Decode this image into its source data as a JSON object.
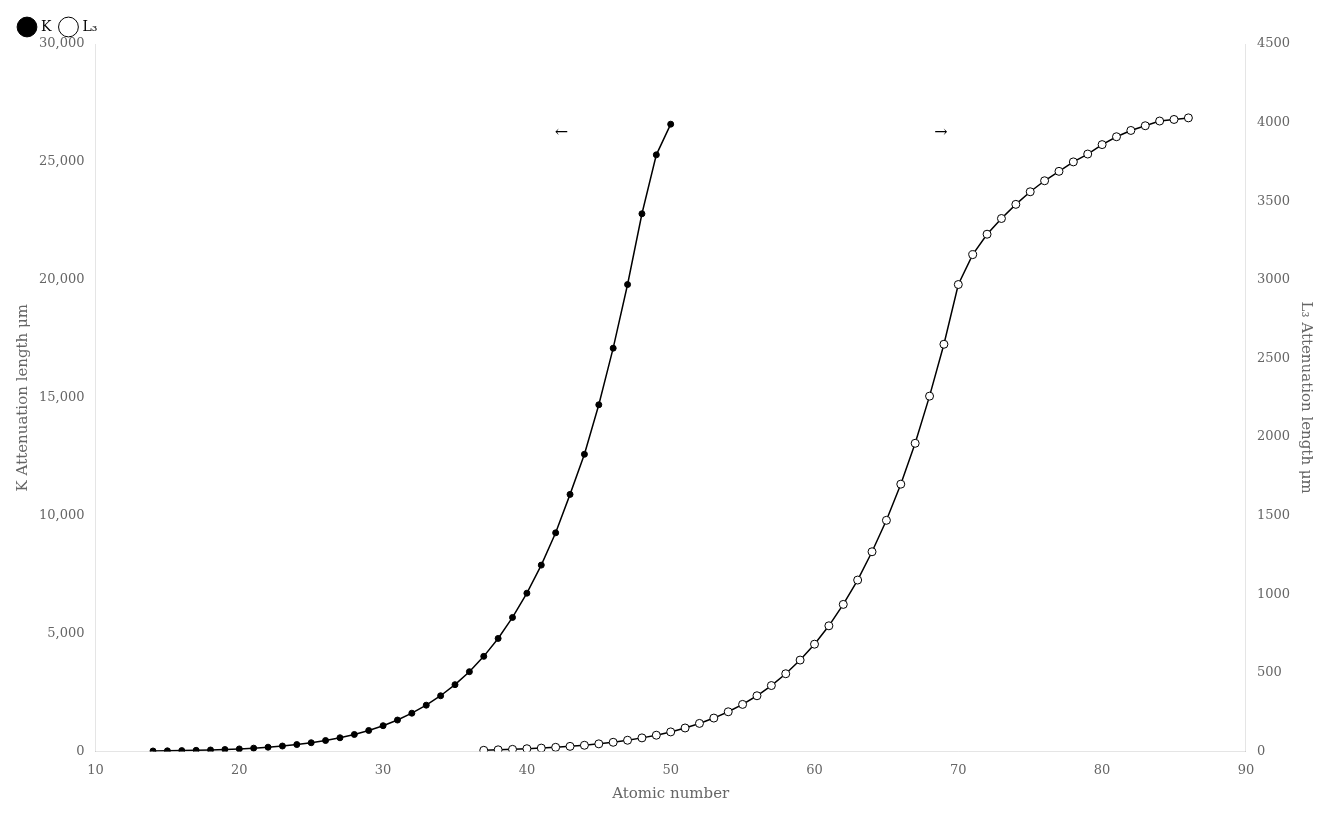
{
  "chart_data": {
    "type": "line",
    "xlabel": "Atomic number",
    "ylabel": "K Attenuation length μm",
    "y2label": "L₃ Attenuation length μm",
    "xlim": [
      10,
      90
    ],
    "xticks": [
      10,
      20,
      30,
      40,
      50,
      60,
      70,
      80,
      90
    ],
    "ylim": [
      0,
      30000
    ],
    "yticks": [
      0,
      {
        "value": 5000,
        "label": "5,000"
      },
      {
        "value": 10000,
        "label": "10,000"
      },
      {
        "value": 15000,
        "label": "15,000"
      },
      {
        "value": 20000,
        "label": "20,000"
      },
      {
        "value": 25000,
        "label": "25,000"
      },
      {
        "value": 30000,
        "label": "30,000"
      }
    ],
    "y2lim": [
      0,
      4500
    ],
    "y2ticks": [
      0,
      500,
      1000,
      1500,
      2000,
      2500,
      3000,
      3500,
      4000,
      4500
    ],
    "grid": false,
    "legend": "upper left",
    "annotations": [
      "←",
      "→"
    ],
    "series": [
      {
        "name": "K",
        "color": "#000000",
        "marker": "filled",
        "axis": "y",
        "x": [
          14,
          15,
          16,
          17,
          18,
          19,
          20,
          21,
          22,
          23,
          24,
          25,
          26,
          27,
          28,
          29,
          30,
          31,
          32,
          33,
          34,
          35,
          36,
          37,
          38,
          39,
          40,
          41,
          42,
          43,
          44,
          45,
          46,
          47,
          48,
          49,
          50
        ],
        "values": [
          17,
          24,
          33,
          45,
          60,
          80,
          105,
          138,
          178,
          228,
          290,
          368,
          462,
          578,
          718,
          887,
          1090,
          1330,
          1620,
          1960,
          2360,
          2830,
          3380,
          4030,
          4790,
          5680,
          6710,
          7900,
          9270,
          10900,
          12600,
          14700,
          17100,
          19800,
          22800,
          25300,
          26600
        ]
      },
      {
        "name": "L₃",
        "color": "#000000",
        "marker": "open",
        "axis": "y2",
        "x": [
          37,
          38,
          39,
          40,
          41,
          42,
          43,
          44,
          45,
          46,
          47,
          48,
          49,
          50,
          51,
          52,
          53,
          54,
          55,
          56,
          57,
          58,
          59,
          60,
          61,
          62,
          63,
          64,
          65,
          66,
          67,
          68,
          69,
          70,
          71,
          72,
          73,
          74,
          75,
          76,
          77,
          78,
          79,
          80,
          81,
          82,
          83,
          84,
          85,
          86
        ],
        "values": [
          7,
          10,
          13,
          17,
          21,
          26,
          32,
          39,
          48,
          58,
          71,
          86,
          103,
          124,
          149,
          178,
          212,
          252,
          299,
          354,
          419,
          494,
          581,
          682,
          799,
          935,
          1090,
          1270,
          1470,
          1700,
          1960,
          2260,
          2590,
          2970,
          3160,
          3290,
          3390,
          3480,
          3560,
          3630,
          3690,
          3750,
          3800,
          3860,
          3910,
          3950,
          3980,
          4010,
          4020,
          4030
        ]
      }
    ]
  }
}
